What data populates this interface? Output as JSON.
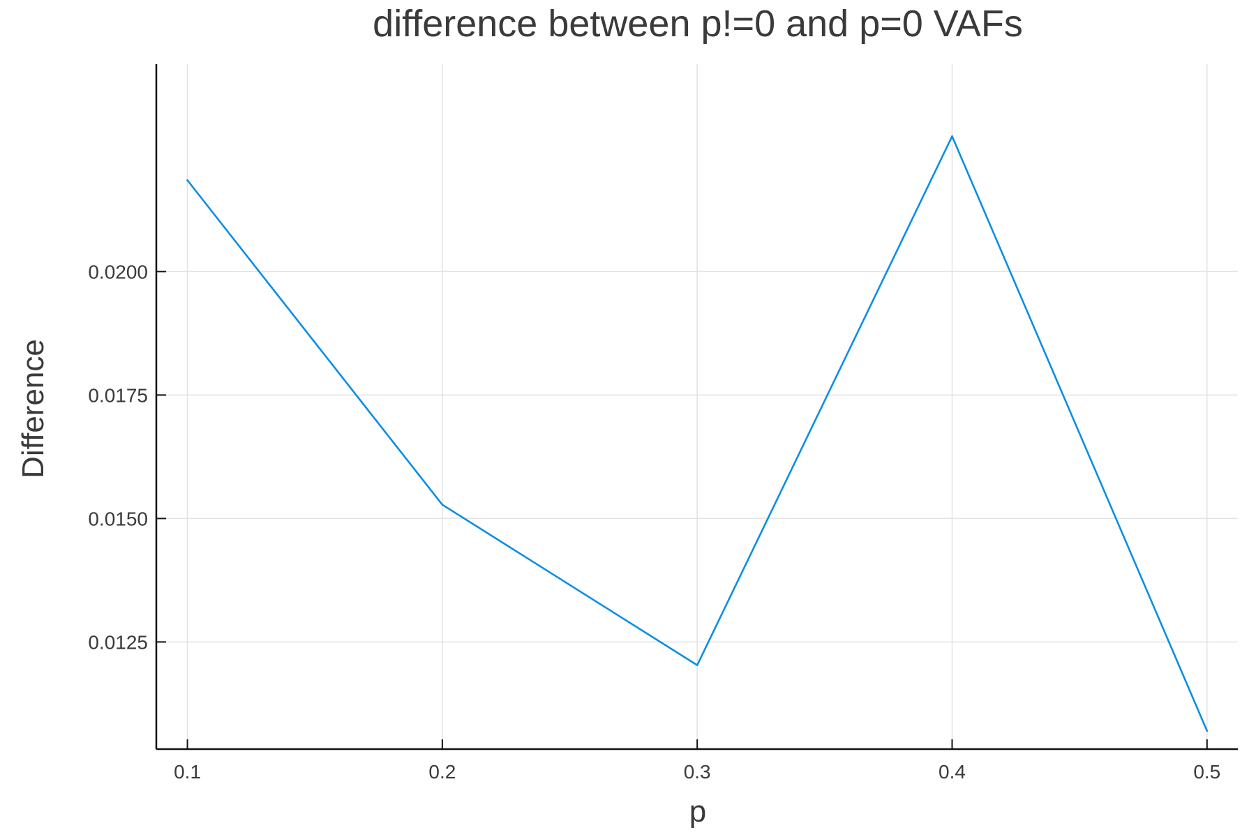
{
  "chart_data": {
    "type": "line",
    "title": "difference between p!=0 and p=0 VAFs",
    "xlabel": "p",
    "ylabel": "Difference",
    "x": [
      0.1,
      0.2,
      0.3,
      0.4,
      0.5
    ],
    "series": [
      {
        "values": [
          0.02185,
          0.01528,
          0.01203,
          0.02274,
          0.0107
        ]
      }
    ],
    "x_ticks": [
      0.1,
      0.2,
      0.3,
      0.4,
      0.5
    ],
    "x_tick_labels": [
      "0.1",
      "0.2",
      "0.3",
      "0.4",
      "0.5"
    ],
    "y_ticks": [
      0.0125,
      0.015,
      0.0175,
      0.02
    ],
    "y_tick_labels": [
      "0.0125",
      "0.0150",
      "0.0175",
      "0.0200"
    ],
    "xlim": [
      0.0878,
      0.5121
    ],
    "ylim": [
      0.01033,
      0.0242
    ],
    "grid": true,
    "legend": "none",
    "line_color": "#0a8ee6",
    "grid_color": "#e2e2e2",
    "axis_color": "#111111"
  }
}
